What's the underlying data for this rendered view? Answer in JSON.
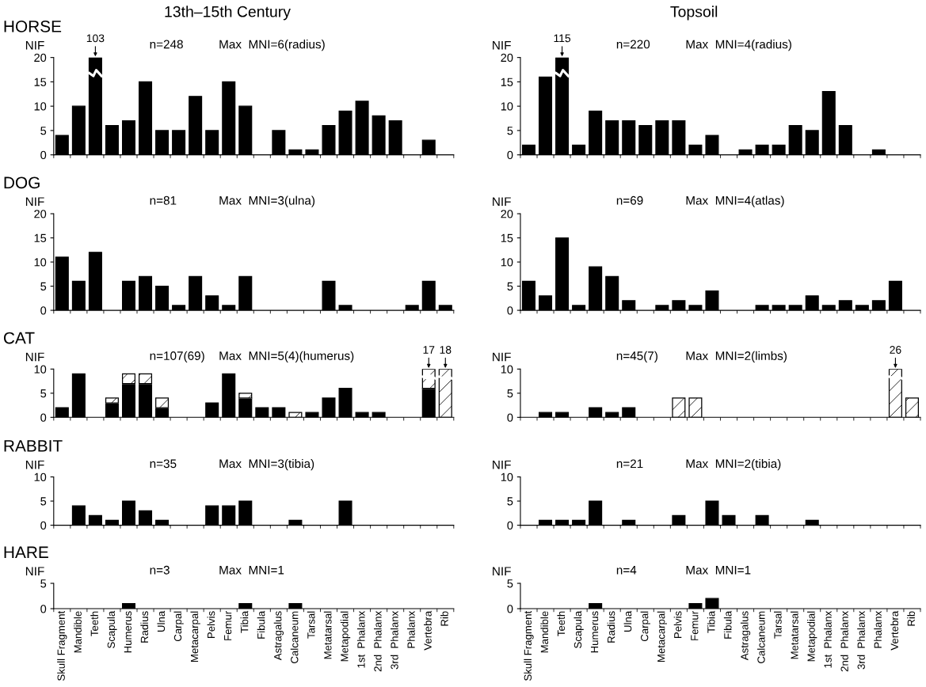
{
  "chart_data": [
    {
      "type": "bar",
      "title": "13th–15th Century",
      "subtitle": "HORSE",
      "ylabel": "NIF",
      "tick_labels": "y",
      "categories": [
        "Skull Fragment",
        "Mandible",
        "Teeth",
        "Scapula",
        "Humerus",
        "Radius",
        "Ulna",
        "Carpal",
        "Metacarpal",
        "Pelvis",
        "Femur",
        "Tibia",
        "Fibula",
        "Astragalus",
        "Calcaneum",
        "Tarsal",
        "Metatarsal",
        "Metapodial",
        "1st  Phalanx",
        "2nd  Phalanx",
        "3rd  Phalanx",
        "Phalanx",
        "Vertebra",
        "Rib"
      ],
      "color": "#000000",
      "values": [
        4,
        10,
        20,
        6,
        7,
        15,
        5,
        5,
        12,
        5,
        15,
        10,
        0,
        5,
        1,
        1,
        6,
        9,
        11,
        8,
        7,
        0,
        3,
        0
      ],
      "ylim": [
        0,
        20
      ],
      "yticks": [
        0,
        5,
        10,
        15,
        20
      ],
      "annotations": [
        "n=248",
        "Max  MNI=6(radius)",
        {
          "text": "103",
          "x": "Teeth",
          "y": 20
        }
      ]
    },
    {
      "type": "bar",
      "title": "Topsoil",
      "ylabel": "NIF",
      "tick_labels": "y",
      "categories": [
        "Skull Fragment",
        "Mandible",
        "Teeth",
        "Scapula",
        "Humerus",
        "Radius",
        "Ulna",
        "Carpal",
        "Metacarpal",
        "Pelvis",
        "Femur",
        "Tibia",
        "Fibula",
        "Astragalus",
        "Calcaneum",
        "Tarsal",
        "Metatarsal",
        "Metapodial",
        "1st  Phalanx",
        "2nd  Phalanx",
        "3rd  Phalanx",
        "Phalanx",
        "Vertebra",
        "Rib"
      ],
      "color": "#000000",
      "values": [
        2,
        16,
        20,
        2,
        9,
        7,
        7,
        6,
        7,
        7,
        2,
        4,
        0,
        1,
        2,
        2,
        6,
        5,
        13,
        6,
        0,
        1,
        0,
        0
      ],
      "ylim": [
        0,
        20
      ],
      "yticks": [
        0,
        5,
        10,
        15,
        20
      ],
      "annotations": [
        "n=220",
        "Max  MNI=4(radius)",
        {
          "text": "115",
          "x": "Teeth",
          "y": 20
        }
      ]
    },
    {
      "type": "bar",
      "subtitle": "DOG",
      "ylabel": "NIF",
      "tick_labels": "y",
      "categories": [
        "Skull Fragment",
        "Mandible",
        "Teeth",
        "Scapula",
        "Humerus",
        "Radius",
        "Ulna",
        "Carpal",
        "Metacarpal",
        "Pelvis",
        "Femur",
        "Tibia",
        "Fibula",
        "Astragalus",
        "Calcaneum",
        "Tarsal",
        "Metatarsal",
        "Metapodial",
        "1st  Phalanx",
        "2nd  Phalanx",
        "3rd  Phalanx",
        "Phalanx",
        "Vertebra",
        "Rib"
      ],
      "color": "#000000",
      "values": [
        11,
        6,
        12,
        0,
        6,
        7,
        5,
        1,
        7,
        3,
        1,
        7,
        0,
        0,
        0,
        0,
        6,
        1,
        0,
        0,
        0,
        1,
        6,
        1
      ],
      "ylim": [
        0,
        20
      ],
      "yticks": [
        0,
        5,
        10,
        15,
        20
      ],
      "annotations": [
        "n=81",
        "Max  MNI=3(ulna)"
      ]
    },
    {
      "type": "bar",
      "ylabel": "NIF",
      "tick_labels": "y",
      "categories": [
        "Skull Fragment",
        "Mandible",
        "Teeth",
        "Scapula",
        "Humerus",
        "Radius",
        "Ulna",
        "Carpal",
        "Metacarpal",
        "Pelvis",
        "Femur",
        "Tibia",
        "Fibula",
        "Astragalus",
        "Calcaneum",
        "Tarsal",
        "Metatarsal",
        "Metapodial",
        "1st  Phalanx",
        "2nd  Phalanx",
        "3rd  Phalanx",
        "Phalanx",
        "Vertebra",
        "Rib"
      ],
      "color": "#000000",
      "values": [
        6,
        3,
        15,
        1,
        9,
        7,
        2,
        0,
        1,
        2,
        1,
        4,
        0,
        0,
        1,
        1,
        1,
        3,
        1,
        2,
        1,
        2,
        6,
        0
      ],
      "ylim": [
        0,
        20
      ],
      "yticks": [
        0,
        5,
        10,
        15,
        20
      ],
      "annotations": [
        "n=69",
        "Max  MNI=4(atlas)"
      ]
    },
    {
      "type": "bar",
      "subtitle": "CAT",
      "ylabel": "NIF",
      "tick_labels": "y",
      "stacked": true,
      "categories": [
        "Skull Fragment",
        "Mandible",
        "Teeth",
        "Scapula",
        "Humerus",
        "Radius",
        "Ulna",
        "Carpal",
        "Metacarpal",
        "Pelvis",
        "Femur",
        "Tibia",
        "Fibula",
        "Astragalus",
        "Calcaneum",
        "Tarsal",
        "Metatarsal",
        "Metapodial",
        "1st  Phalanx",
        "2nd  Phalanx",
        "3rd  Phalanx",
        "Phalanx",
        "Vertebra",
        "Rib"
      ],
      "series": [
        {
          "color": "#000000",
          "values": [
            2,
            9,
            0,
            3,
            7,
            7,
            2,
            0,
            0,
            3,
            9,
            4,
            2,
            2,
            0,
            1,
            4,
            6,
            1,
            1,
            0,
            0,
            6,
            0
          ]
        },
        {
          "color": "#ffffff",
          "values": [
            0,
            0,
            0,
            1,
            2,
            2,
            2,
            0,
            0,
            0,
            0,
            1,
            0,
            0,
            1,
            0,
            0,
            0,
            0,
            0,
            0,
            0,
            4,
            10
          ]
        }
      ],
      "ylim": [
        0,
        10
      ],
      "yticks": [
        0,
        5,
        10
      ],
      "annotations": [
        "n=107(69)",
        "Max  MNI=5(4)(humerus)",
        {
          "text": "17",
          "x": "Vertebra",
          "y": 10
        },
        {
          "text": "18",
          "x": "Rib",
          "y": 10
        }
      ]
    },
    {
      "type": "bar",
      "ylabel": "NIF",
      "tick_labels": "y",
      "stacked": true,
      "categories": [
        "Skull Fragment",
        "Mandible",
        "Teeth",
        "Scapula",
        "Humerus",
        "Radius",
        "Ulna",
        "Carpal",
        "Metacarpal",
        "Pelvis",
        "Femur",
        "Tibia",
        "Fibula",
        "Astragalus",
        "Calcaneum",
        "Tarsal",
        "Metatarsal",
        "Metapodial",
        "1st  Phalanx",
        "2nd  Phalanx",
        "3rd  Phalanx",
        "Phalanx",
        "Vertebra",
        "Rib"
      ],
      "series": [
        {
          "color": "#000000",
          "values": [
            0,
            1,
            1,
            0,
            2,
            1,
            2,
            0,
            0,
            0,
            0,
            0,
            0,
            0,
            0,
            0,
            0,
            0,
            0,
            0,
            0,
            0,
            0,
            0
          ]
        },
        {
          "color": "#ffffff",
          "values": [
            0,
            0,
            0,
            0,
            0,
            0,
            0,
            0,
            0,
            4,
            4,
            0,
            0,
            0,
            0,
            0,
            0,
            0,
            0,
            0,
            0,
            0,
            10,
            4
          ]
        }
      ],
      "ylim": [
        0,
        10
      ],
      "yticks": [
        0,
        5,
        10
      ],
      "annotations": [
        "n=45(7)",
        "Max  MNI=2(limbs)",
        {
          "text": "26",
          "x": "Vertebra",
          "y": 10
        }
      ]
    },
    {
      "type": "bar",
      "subtitle": "RABBIT",
      "ylabel": "NIF",
      "tick_labels": "y",
      "categories": [
        "Skull Fragment",
        "Mandible",
        "Teeth",
        "Scapula",
        "Humerus",
        "Radius",
        "Ulna",
        "Carpal",
        "Metacarpal",
        "Pelvis",
        "Femur",
        "Tibia",
        "Fibula",
        "Astragalus",
        "Calcaneum",
        "Tarsal",
        "Metatarsal",
        "Metapodial",
        "1st  Phalanx",
        "2nd  Phalanx",
        "3rd  Phalanx",
        "Phalanx",
        "Vertebra",
        "Rib"
      ],
      "color": "#000000",
      "values": [
        0,
        4,
        2,
        1,
        5,
        3,
        1,
        0,
        0,
        4,
        4,
        5,
        0,
        0,
        1,
        0,
        0,
        5,
        0,
        0,
        0,
        0,
        0,
        0
      ],
      "ylim": [
        0,
        10
      ],
      "yticks": [
        0,
        5,
        10
      ],
      "annotations": [
        "n=35",
        "Max  MNI=3(tibia)"
      ]
    },
    {
      "type": "bar",
      "ylabel": "NIF",
      "tick_labels": "y",
      "categories": [
        "Skull Fragment",
        "Mandible",
        "Teeth",
        "Scapula",
        "Humerus",
        "Radius",
        "Ulna",
        "Carpal",
        "Metacarpal",
        "Pelvis",
        "Femur",
        "Tibia",
        "Fibula",
        "Astragalus",
        "Calcaneum",
        "Tarsal",
        "Metatarsal",
        "Metapodial",
        "1st  Phalanx",
        "2nd  Phalanx",
        "3rd  Phalanx",
        "Phalanx",
        "Vertebra",
        "Rib"
      ],
      "color": "#000000",
      "values": [
        0,
        1,
        1,
        1,
        5,
        0,
        1,
        0,
        0,
        2,
        0,
        5,
        2,
        0,
        2,
        0,
        0,
        1,
        0,
        0,
        0,
        0,
        0,
        0
      ],
      "ylim": [
        0,
        10
      ],
      "yticks": [
        0,
        5,
        10
      ],
      "annotations": [
        "n=21",
        "Max  MNI=2(tibia)"
      ]
    },
    {
      "type": "bar",
      "subtitle": "HARE",
      "ylabel": "NIF",
      "categories": [
        "Skull Fragment",
        "Mandible",
        "Teeth",
        "Scapula",
        "Humerus",
        "Radius",
        "Ulna",
        "Carpal",
        "Metacarpal",
        "Pelvis",
        "Femur",
        "Tibia",
        "Fibula",
        "Astragalus",
        "Calcaneum",
        "Tarsal",
        "Metatarsal",
        "Metapodial",
        "1st  Phalanx",
        "2nd  Phalanx",
        "3rd  Phalanx",
        "Phalanx",
        "Vertebra",
        "Rib"
      ],
      "color": "#000000",
      "values": [
        0,
        0,
        0,
        0,
        1,
        0,
        0,
        0,
        0,
        0,
        0,
        1,
        0,
        0,
        1,
        0,
        0,
        0,
        0,
        0,
        0,
        0,
        0,
        0
      ],
      "ylim": [
        0,
        5
      ],
      "yticks": [
        0,
        5
      ],
      "annotations": [
        "n=3",
        "Max  MNI=1"
      ]
    },
    {
      "type": "bar",
      "ylabel": "NIF",
      "categories": [
        "Skull Fragment",
        "Mandible",
        "Teeth",
        "Scapula",
        "Humerus",
        "Radius",
        "Ulna",
        "Carpal",
        "Metacarpal",
        "Pelvis",
        "Femur",
        "Tibia",
        "Fibula",
        "Astragalus",
        "Calcaneum",
        "Tarsal",
        "Metatarsal",
        "Metapodial",
        "1st  Phalanx",
        "2nd  Phalanx",
        "3rd  Phalanx",
        "Phalanx",
        "Vertebra",
        "Rib"
      ],
      "color": "#000000",
      "values": [
        0,
        0,
        0,
        0,
        1,
        0,
        0,
        0,
        0,
        0,
        1,
        2,
        0,
        0,
        0,
        0,
        0,
        0,
        0,
        0,
        0,
        0,
        0,
        0
      ],
      "ylim": [
        0,
        5
      ],
      "yticks": [
        0,
        5
      ],
      "annotations": [
        "n=4",
        "Max  MNI=1"
      ]
    }
  ]
}
